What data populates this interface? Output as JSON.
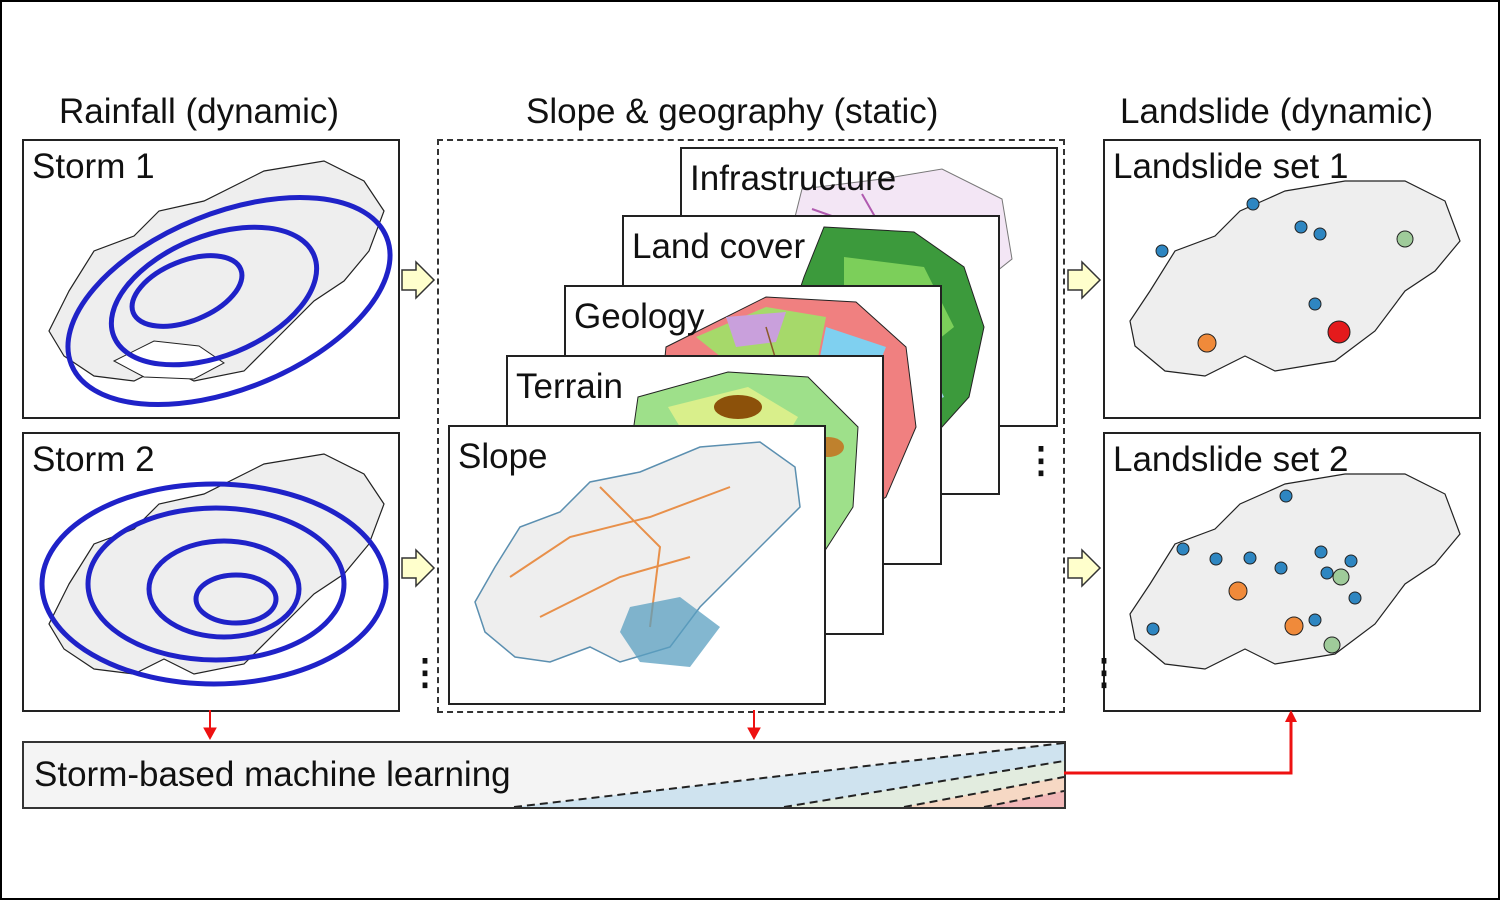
{
  "headings": {
    "rainfall": "Rainfall (dynamic)",
    "slope_geo": "Slope & geography (static)",
    "landslide": "Landslide (dynamic)"
  },
  "rainfall_panels": [
    {
      "label": "Storm 1"
    },
    {
      "label": "Storm 2"
    }
  ],
  "layers": [
    {
      "label": "Infrastructure"
    },
    {
      "label": "Land cover"
    },
    {
      "label": "Geology"
    },
    {
      "label": "Terrain"
    },
    {
      "label": "Slope"
    }
  ],
  "landslide_panels": [
    {
      "label": "Landslide set 1"
    },
    {
      "label": "Landslide set 2"
    }
  ],
  "ml_label": "Storm-based machine learning",
  "colors": {
    "storm_contour": "#1f22c8",
    "arrow_fill": "#ffffcc",
    "connector": "#ee1111",
    "land": "#eeeeee",
    "point_blue": "#2e86c1",
    "point_orange": "#f08a3a",
    "point_green": "#9fcb9a",
    "point_red": "#e41a1c",
    "band_blue": "#cfe3ef",
    "band_green": "#e2ecdf",
    "band_orange": "#f6d8c4",
    "band_red": "#f2b8b8"
  }
}
